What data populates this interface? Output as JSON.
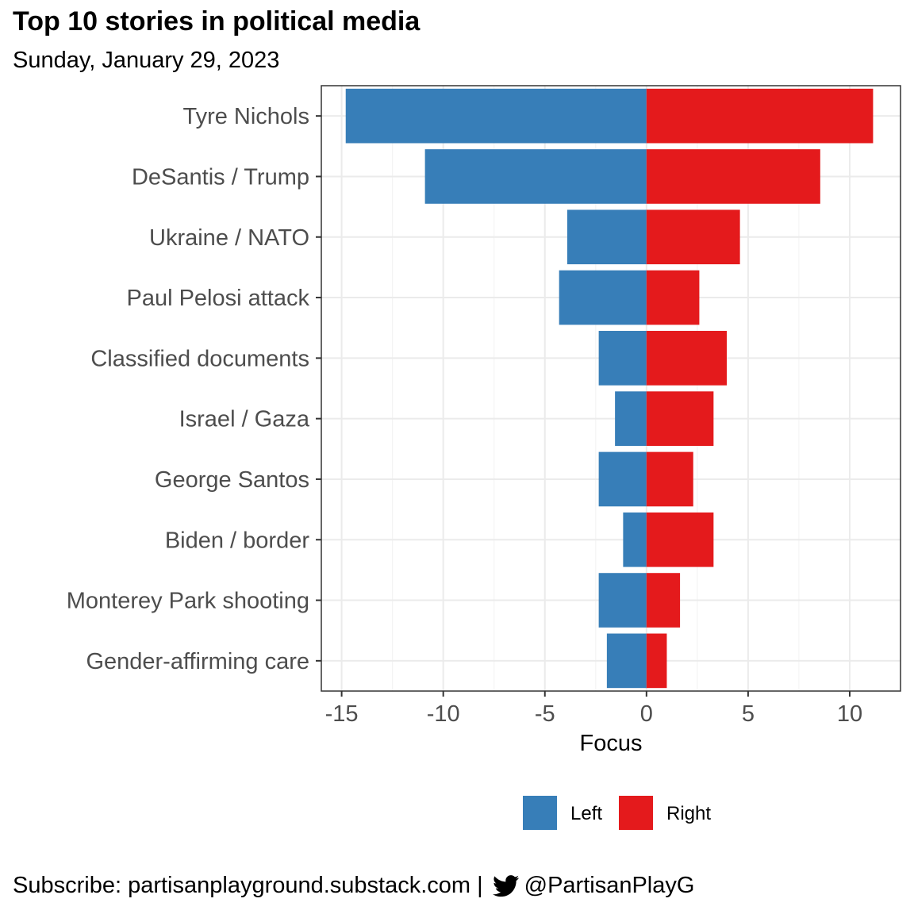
{
  "title": "Top 10 stories in political media",
  "subtitle": "Sunday, January 29, 2023",
  "caption": {
    "prefix": "Subscribe: partisanplayground.substack.com",
    "separator": "|",
    "icon": "twitter-bird-icon",
    "handle": "@PartisanPlayG"
  },
  "chart_data": {
    "type": "bar",
    "orientation": "horizontal",
    "stacking": "diverging",
    "categories": [
      "Tyre Nichols",
      "DeSantis / Trump",
      "Ukraine / NATO",
      "Paul Pelosi attack",
      "Classified documents",
      "Israel / Gaza",
      "George Santos",
      "Biden / border",
      "Monterey Park shooting",
      "Gender-affirming care"
    ],
    "series": [
      {
        "name": "Left",
        "color": "#377eb8",
        "values": [
          -14.8,
          -10.9,
          -3.9,
          -4.3,
          -2.35,
          -1.55,
          -2.35,
          -1.15,
          -2.35,
          -1.95
        ]
      },
      {
        "name": "Right",
        "color": "#e41a1c",
        "values": [
          11.15,
          8.55,
          4.6,
          2.6,
          3.95,
          3.3,
          2.3,
          3.3,
          1.65,
          1.0
        ]
      }
    ],
    "xlabel": "Focus",
    "xlim": [
      -16,
      12.5
    ],
    "xticks": [
      -15,
      -10,
      -5,
      0,
      5,
      10
    ],
    "xtick_labels": [
      "-15",
      "-10",
      "-5",
      "0",
      "5",
      "10"
    ],
    "grid": true,
    "legend_position": "bottom"
  }
}
